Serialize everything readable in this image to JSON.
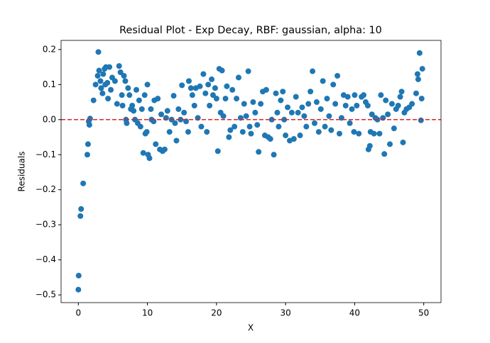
{
  "chart_data": {
    "type": "scatter",
    "title": "Residual Plot - Exp Decay, RBF: gaussian, alpha: 10",
    "x_label": "X",
    "y_label": "Residuals",
    "xlim": [
      -2.5,
      52.5
    ],
    "ylim": [
      -0.522,
      0.226
    ],
    "xticks": [
      0,
      10,
      20,
      30,
      40,
      50
    ],
    "yticks": [
      {
        "value": -0.5,
        "label": "−0.5"
      },
      {
        "value": -0.4,
        "label": "−0.4"
      },
      {
        "value": -0.3,
        "label": "−0.3"
      },
      {
        "value": -0.2,
        "label": "−0.2"
      },
      {
        "value": -0.1,
        "label": "−0.1"
      },
      {
        "value": 0,
        "label": "0.0"
      },
      {
        "value": 0.1,
        "label": "0.1"
      },
      {
        "value": 0.2,
        "label": "0.2"
      }
    ],
    "reference_line": {
      "y": 0,
      "color": "#d62728",
      "style": "dashed"
    },
    "series": [
      {
        "color": "#1f77b4",
        "x": [
          0.0,
          0.05,
          0.3,
          0.4,
          0.7,
          1.3,
          1.4,
          1.5,
          1.6,
          1.7,
          2.2,
          2.5,
          2.9,
          2.8,
          3.0,
          3.2,
          3.3,
          3.5,
          3.6,
          3.8,
          3.9,
          4.0,
          4.2,
          4.3,
          4.5,
          4.7,
          4.9,
          5.3,
          5.6,
          5.9,
          6.1,
          6.3,
          6.4,
          6.6,
          6.8,
          6.9,
          7.0,
          7.2,
          7.4,
          7.6,
          7.8,
          8.0,
          8.2,
          8.4,
          8.6,
          8.8,
          9.0,
          9.2,
          9.4,
          9.6,
          9.7,
          9.9,
          10.0,
          10.1,
          10.3,
          10.5,
          10.6,
          10.9,
          11.0,
          11.2,
          11.5,
          11.8,
          12.0,
          12.2,
          12.5,
          12.7,
          12.9,
          13.2,
          13.5,
          13.8,
          14.0,
          14.2,
          14.5,
          14.8,
          15.0,
          15.3,
          15.6,
          15.9,
          16.0,
          16.3,
          16.5,
          16.8,
          17.0,
          17.3,
          17.6,
          17.8,
          18.1,
          18.4,
          18.6,
          18.8,
          19.0,
          19.3,
          19.5,
          19.8,
          20.0,
          20.2,
          20.4,
          20.6,
          20.8,
          21.0,
          21.3,
          21.5,
          21.8,
          22.0,
          22.3,
          22.6,
          22.9,
          23.2,
          23.5,
          23.8,
          24.0,
          24.3,
          24.6,
          24.8,
          25.0,
          25.3,
          25.6,
          25.9,
          26.1,
          26.4,
          26.7,
          27.0,
          27.2,
          27.5,
          27.8,
          28.0,
          28.3,
          28.6,
          28.8,
          29.0,
          29.3,
          29.6,
          29.8,
          30.0,
          30.3,
          30.6,
          30.9,
          31.2,
          31.5,
          31.8,
          32.1,
          32.4,
          32.7,
          33.0,
          33.3,
          33.6,
          33.9,
          34.2,
          34.5,
          34.8,
          35.1,
          35.4,
          35.7,
          36.0,
          36.3,
          36.6,
          36.9,
          37.2,
          37.5,
          37.8,
          38.1,
          38.4,
          38.7,
          39.0,
          39.3,
          39.6,
          39.9,
          40.0,
          40.3,
          40.6,
          41.0,
          41.3,
          41.6,
          41.9,
          42.0,
          42.2,
          42.3,
          42.5,
          42.8,
          43.0,
          43.3,
          43.6,
          43.8,
          44.1,
          44.3,
          44.5,
          44.8,
          45.1,
          45.4,
          45.7,
          46.0,
          46.3,
          46.6,
          46.8,
          47.0,
          47.2,
          47.5,
          47.9,
          48.3,
          48.9,
          49.1,
          49.2,
          49.4,
          49.6,
          49.8,
          49.7
        ],
        "values": [
          -0.485,
          -0.445,
          -0.275,
          -0.255,
          -0.182,
          -0.1,
          -0.07,
          -0.005,
          -0.015,
          0.003,
          0.055,
          0.1,
          0.193,
          0.125,
          0.14,
          0.11,
          0.09,
          0.075,
          0.13,
          0.145,
          0.1,
          0.15,
          0.105,
          0.06,
          0.15,
          0.085,
          0.12,
          0.11,
          0.045,
          0.153,
          0.135,
          0.07,
          0.04,
          0.125,
          0.11,
          0.0,
          -0.01,
          0.09,
          0.07,
          0.03,
          0.04,
          0.025,
          0.0,
          0.085,
          -0.01,
          0.055,
          -0.02,
          0.03,
          -0.095,
          0.07,
          -0.04,
          -0.035,
          0.1,
          -0.1,
          -0.11,
          0.03,
          0.0,
          -0.005,
          0.055,
          -0.07,
          0.06,
          -0.085,
          0.015,
          -0.09,
          -0.085,
          0.005,
          0.025,
          -0.035,
          0.0,
          0.068,
          -0.01,
          -0.06,
          0.03,
          0.0,
          0.098,
          0.02,
          -0.005,
          -0.035,
          0.11,
          0.09,
          0.07,
          0.04,
          0.09,
          0.005,
          0.095,
          -0.02,
          0.13,
          0.075,
          -0.035,
          0.1,
          0.04,
          0.115,
          0.07,
          0.09,
          0.06,
          -0.09,
          0.145,
          0.02,
          0.14,
          0.01,
          0.06,
          0.095,
          -0.05,
          -0.03,
          0.085,
          -0.02,
          0.06,
          0.12,
          0.005,
          -0.035,
          0.045,
          0.01,
          0.138,
          -0.02,
          -0.04,
          0.05,
          0.02,
          -0.015,
          -0.092,
          0.045,
          0.08,
          -0.045,
          0.085,
          -0.05,
          -0.055,
          0.0,
          -0.1,
          0.075,
          0.02,
          -0.02,
          0.055,
          0.08,
          0.0,
          -0.045,
          0.035,
          -0.06,
          0.02,
          -0.055,
          0.065,
          0.02,
          -0.045,
          0.035,
          0.01,
          -0.02,
          0.045,
          0.08,
          0.138,
          -0.01,
          0.05,
          -0.035,
          0.03,
          0.11,
          -0.02,
          0.06,
          0.01,
          -0.03,
          0.1,
          0.045,
          0.125,
          -0.04,
          0.005,
          0.07,
          0.04,
          0.065,
          -0.01,
          0.03,
          -0.035,
          0.07,
          0.04,
          -0.04,
          0.065,
          0.07,
          0.05,
          0.04,
          -0.085,
          -0.075,
          -0.035,
          0.015,
          -0.04,
          0.005,
          0.0,
          -0.04,
          0.07,
          0.005,
          -0.098,
          0.055,
          0.015,
          -0.07,
          0.045,
          -0.025,
          0.03,
          0.04,
          0.065,
          0.08,
          -0.065,
          0.02,
          0.03,
          0.035,
          0.045,
          0.075,
          0.13,
          0.115,
          0.19,
          -0.002,
          0.145,
          0.06
        ]
      }
    ]
  }
}
